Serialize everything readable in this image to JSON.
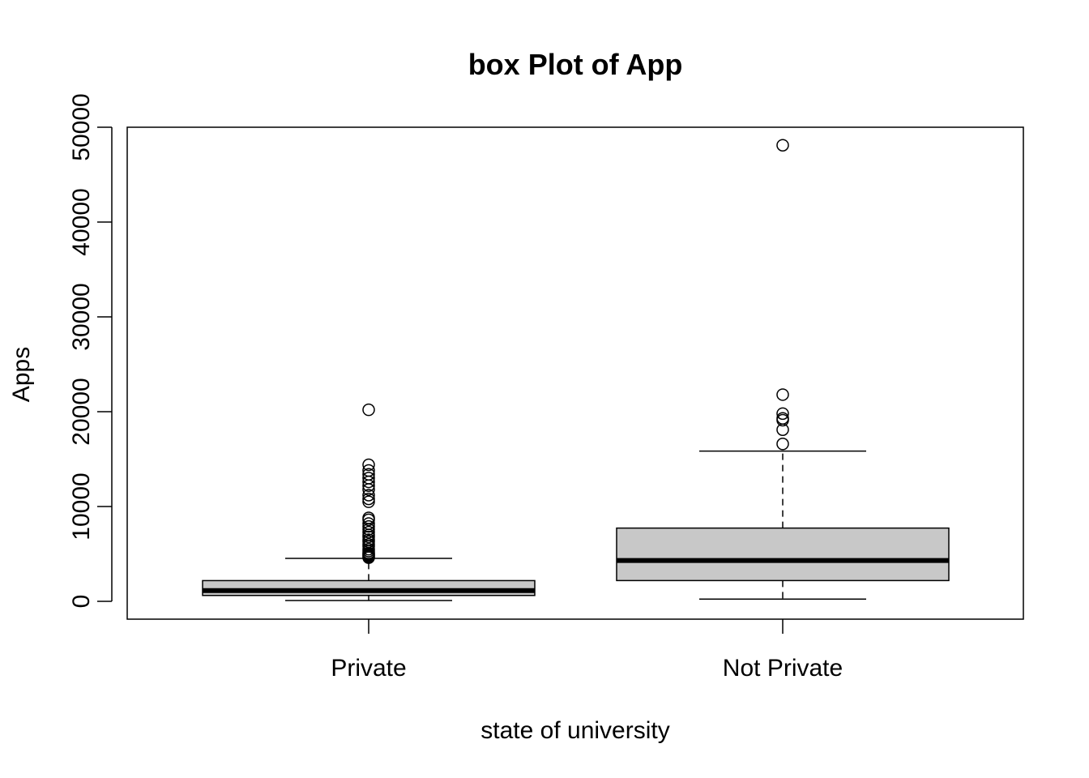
{
  "chart_data": {
    "type": "boxplot",
    "title": "box Plot of App",
    "xlabel": "state of university",
    "ylabel": "Apps",
    "ylim": [
      -1800,
      50000
    ],
    "yticks": [
      0,
      10000,
      20000,
      30000,
      40000,
      50000
    ],
    "ytick_labels": [
      "0",
      "10000",
      "20000",
      "30000",
      "40000",
      "50000"
    ],
    "categories": [
      "Private",
      "Not Private"
    ],
    "box_fill": "#c8c8c8",
    "series": [
      {
        "category": "Private",
        "whisker_low": 81,
        "q1": 619,
        "median": 1133,
        "q3": 2186,
        "whisker_high": 4532,
        "outliers": [
          4600,
          4700,
          4800,
          4900,
          5000,
          5100,
          5300,
          5500,
          5800,
          6000,
          6300,
          6500,
          6800,
          7000,
          7300,
          7600,
          7900,
          8200,
          8600,
          8800,
          10500,
          10800,
          11200,
          11800,
          12200,
          12600,
          13000,
          13400,
          13800,
          14400,
          20200
        ]
      },
      {
        "category": "Not Private",
        "whisker_low": 233,
        "q1": 2190,
        "median": 4307,
        "q3": 7725,
        "whisker_high": 15849,
        "outliers": [
          16600,
          18100,
          19100,
          19300,
          19800,
          21800,
          48100
        ]
      }
    ]
  }
}
